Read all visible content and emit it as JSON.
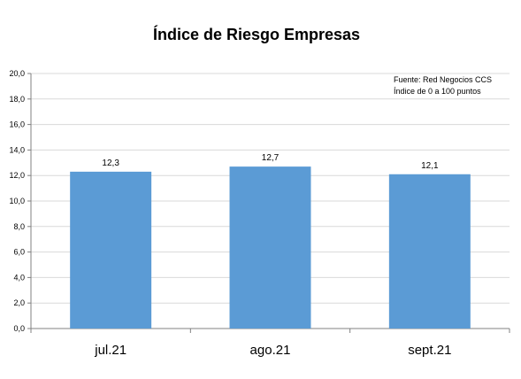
{
  "chart_data": {
    "type": "bar",
    "title": "Índice de Riesgo Empresas",
    "notes": [
      "Fuente: Red Negocios CCS",
      "Índice de 0 a 100 puntos"
    ],
    "categories": [
      "jul.21",
      "ago.21",
      "sept.21"
    ],
    "values": [
      12.3,
      12.7,
      12.1
    ],
    "data_labels": [
      "12,3",
      "12,7",
      "12,1"
    ],
    "ylim": [
      0,
      20
    ],
    "yticks": [
      0,
      2,
      4,
      6,
      8,
      10,
      12,
      14,
      16,
      18,
      20
    ],
    "ytick_labels": [
      "0,0",
      "2,0",
      "4,0",
      "6,0",
      "8,0",
      "10,0",
      "12,0",
      "14,0",
      "16,0",
      "18,0",
      "20,0"
    ],
    "xlabel": "",
    "ylabel": "",
    "grid": true,
    "legend": "none",
    "bar_color": "#5b9bd5",
    "grid_color": "#d9d9d9"
  }
}
